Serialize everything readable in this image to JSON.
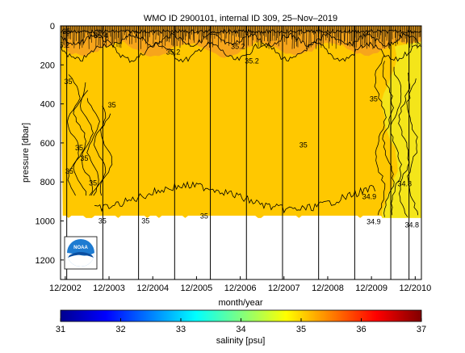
{
  "chart_data": {
    "type": "heatmap",
    "title": "WMO ID 2900101, internal ID 309, 25–Nov–2019",
    "xlabel": "month/year",
    "ylabel": "pressure [dbar]",
    "x_ticks": [
      "12/2002",
      "12/2003",
      "12/2004",
      "12/2005",
      "12/2006",
      "12/2007",
      "12/2008",
      "12/2009",
      "12/2010"
    ],
    "x_tick_months": [
      0,
      12,
      24,
      36,
      48,
      60,
      72,
      84,
      96
    ],
    "xlim_months": [
      -1.3,
      97.7
    ],
    "y_ticks": [
      0,
      200,
      400,
      600,
      800,
      1000,
      1200
    ],
    "ylim": [
      0,
      1300
    ],
    "y_reversed": true,
    "profile_months": [
      0.4,
      10.3,
      20.1,
      30.0,
      39.8,
      49.7,
      59.6,
      69.5,
      79.4,
      89.3,
      94.3
    ],
    "colorbar": {
      "label": "salinity [psu]",
      "ticks": [
        31,
        32,
        33,
        34,
        35,
        36,
        37
      ],
      "range": [
        31,
        37
      ]
    },
    "colors": {
      "main_fill": "#ffc800",
      "upper_fill": "#f7a51b",
      "lower_fill": "#f4e51a",
      "contour": "#000000"
    },
    "contour_labels": [
      {
        "text": "35.2",
        "month": -0.8,
        "pressure": 100
      },
      {
        "text": "35",
        "month": 0.3,
        "pressure": 30
      },
      {
        "text": "35.4",
        "month": 9.8,
        "pressure": 50
      },
      {
        "text": "35.2",
        "month": 29.6,
        "pressure": 135
      },
      {
        "text": "35.2",
        "month": 47.4,
        "pressure": 105
      },
      {
        "text": "35.2",
        "month": 51.2,
        "pressure": 180
      },
      {
        "text": "35",
        "month": 0.8,
        "pressure": 285
      },
      {
        "text": "35",
        "month": 12.8,
        "pressure": 405
      },
      {
        "text": "35",
        "month": 3.8,
        "pressure": 625
      },
      {
        "text": "35",
        "month": 5.2,
        "pressure": 680
      },
      {
        "text": "35",
        "month": 1.1,
        "pressure": 745
      },
      {
        "text": "35",
        "month": 7.6,
        "pressure": 805
      },
      {
        "text": "35",
        "month": 10.2,
        "pressure": 1000
      },
      {
        "text": "35",
        "month": 22.0,
        "pressure": 1000
      },
      {
        "text": "35",
        "month": 38.1,
        "pressure": 975
      },
      {
        "text": "35",
        "month": 65.3,
        "pressure": 610
      },
      {
        "text": "34.9",
        "month": 83.4,
        "pressure": 875
      },
      {
        "text": "34.9",
        "month": 84.6,
        "pressure": 1005
      },
      {
        "text": "35",
        "month": 84.6,
        "pressure": 375
      },
      {
        "text": "34.8",
        "month": 93.1,
        "pressure": 810
      },
      {
        "text": "34.8",
        "month": 95.1,
        "pressure": 1020
      }
    ]
  },
  "logo": {
    "text": "NOAA"
  }
}
